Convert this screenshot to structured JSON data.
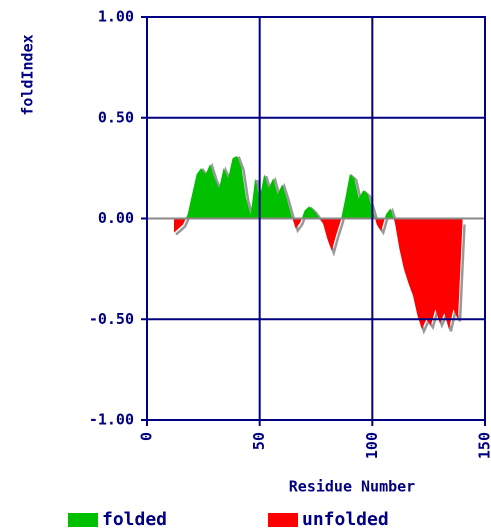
{
  "chart_data": {
    "type": "area",
    "y_label": "foldIndex",
    "x_label": "Residue Number",
    "x": [
      12,
      14,
      16,
      18,
      20,
      22,
      24,
      26,
      28,
      30,
      32,
      34,
      36,
      38,
      40,
      42,
      44,
      46,
      48,
      50,
      52,
      54,
      56,
      58,
      60,
      62,
      64,
      66,
      68,
      70,
      72,
      74,
      76,
      78,
      80,
      82,
      84,
      86,
      88,
      90,
      92,
      94,
      96,
      98,
      100,
      102,
      104,
      106,
      108,
      110,
      112,
      114,
      116,
      118,
      120,
      122,
      124,
      126,
      128,
      130,
      132,
      134,
      136,
      138,
      140
    ],
    "values": [
      -0.07,
      -0.05,
      -0.03,
      0.02,
      0.12,
      0.22,
      0.25,
      0.22,
      0.27,
      0.2,
      0.15,
      0.25,
      0.2,
      0.3,
      0.31,
      0.25,
      0.1,
      0.02,
      0.2,
      0.1,
      0.22,
      0.15,
      0.2,
      0.12,
      0.17,
      0.1,
      0.02,
      -0.05,
      -0.02,
      0.04,
      0.06,
      0.04,
      0.01,
      -0.02,
      -0.1,
      -0.16,
      -0.08,
      -0.01,
      0.1,
      0.22,
      0.2,
      0.1,
      0.14,
      0.12,
      0.05,
      -0.03,
      -0.06,
      0.02,
      0.05,
      -0.02,
      -0.15,
      -0.25,
      -0.32,
      -0.38,
      -0.48,
      -0.55,
      -0.5,
      -0.53,
      -0.45,
      -0.52,
      -0.47,
      -0.55,
      -0.45,
      -0.5,
      -0.02
    ],
    "xlim": [
      0,
      150
    ],
    "xticks": [
      0,
      50,
      100,
      150
    ],
    "ylim": [
      -1,
      1
    ],
    "yticks": [
      {
        "value": -1,
        "label": "-1.00"
      },
      {
        "value": -0.5,
        "label": "-0.50"
      },
      {
        "value": 0,
        "label": "0.00"
      },
      {
        "value": 0.5,
        "label": "0.50"
      },
      {
        "value": 1,
        "label": "1.00"
      }
    ],
    "grid": true,
    "positive_color": "#00c000",
    "negative_color": "#ff0000",
    "legend": [
      {
        "label": "folded",
        "color": "#00c000"
      },
      {
        "label": "unfolded",
        "color": "#ff0000"
      }
    ]
  }
}
